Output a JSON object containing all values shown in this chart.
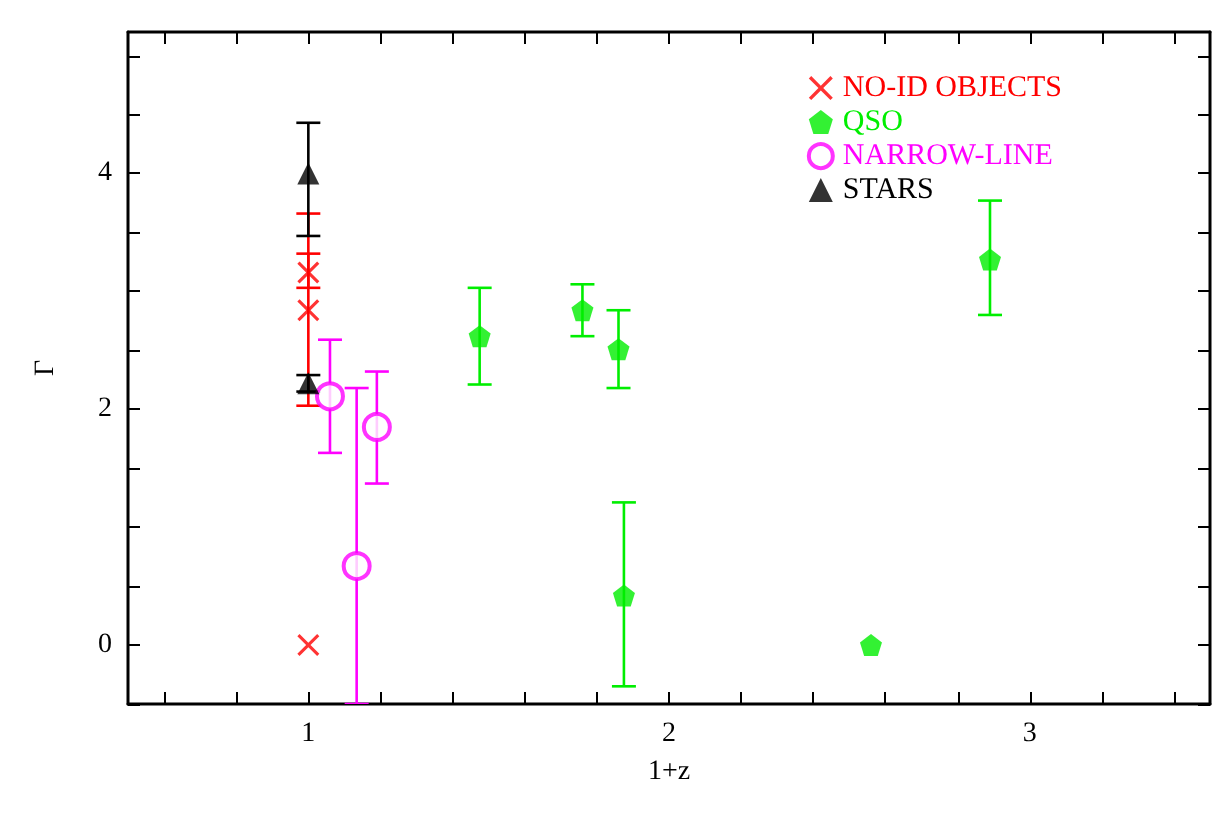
{
  "chart_data": {
    "type": "scatter",
    "xlabel": "1+z",
    "ylabel": "Γ",
    "xlim": [
      0.5,
      3.5
    ],
    "ylim": [
      -0.5,
      5.2
    ],
    "xticks": [
      {
        "value": 0.6,
        "label": null
      },
      {
        "value": 0.8,
        "label": null
      },
      1,
      {
        "value": 1.2,
        "label": null
      },
      {
        "value": 1.4,
        "label": null
      },
      {
        "value": 1.6,
        "label": null
      },
      {
        "value": 1.8,
        "label": null
      },
      2,
      {
        "value": 2.2,
        "label": null
      },
      {
        "value": 2.4,
        "label": null
      },
      {
        "value": 2.6,
        "label": null
      },
      {
        "value": 2.8,
        "label": null
      },
      3,
      {
        "value": 3.2,
        "label": null
      },
      {
        "value": 3.4,
        "label": null
      }
    ],
    "yticks": [
      {
        "value": -0.5,
        "label": null
      },
      0,
      {
        "value": 0.5,
        "label": null
      },
      {
        "value": 1,
        "label": null
      },
      {
        "value": 1.5,
        "label": null
      },
      2,
      {
        "value": 2.5,
        "label": null
      },
      {
        "value": 3,
        "label": null
      },
      {
        "value": 3.5,
        "label": null
      },
      4,
      {
        "value": 4.5,
        "label": null
      },
      {
        "value": 5,
        "label": null
      }
    ],
    "grid": false,
    "legend": "top right",
    "series": [
      {
        "name": "NO-ID OBJECTS",
        "color": "#ff0000",
        "marker": "cross",
        "x": [
          1,
          1,
          1
        ],
        "values": [
          3.16,
          2.84,
          0
        ],
        "errors": [
          [
            3.03,
            3.32
          ],
          [
            2.03,
            3.66
          ],
          null
        ]
      },
      {
        "name": "QSO",
        "color": "#00ee00",
        "x": [
          1.475,
          1.76,
          1.86,
          1.875,
          2.56,
          2.89
        ],
        "values": [
          2.62,
          2.84,
          2.51,
          0.42,
          0,
          3.27
        ],
        "errors": [
          [
            2.21,
            3.03
          ],
          [
            2.62,
            3.06
          ],
          [
            2.18,
            2.84
          ],
          [
            -0.35,
            1.21
          ],
          null,
          [
            2.8,
            3.77
          ]
        ]
      },
      {
        "name": "NARROW-LINE",
        "color": "#ff00ff",
        "marker": "circle",
        "x": [
          1.06,
          1.134,
          1.19
        ],
        "values": [
          2.11,
          0.67,
          1.85
        ],
        "errors": [
          [
            1.63,
            2.59
          ],
          [
            -0.5,
            2.18
          ],
          [
            1.37,
            2.32
          ]
        ]
      },
      {
        "name": "STARS",
        "color": "#000000",
        "marker": "triangle",
        "x": [
          1,
          1
        ],
        "values": [
          4.0,
          2.22
        ],
        "errors": [
          [
            3.47,
            4.43
          ],
          [
            2.15,
            2.29
          ]
        ]
      }
    ]
  }
}
